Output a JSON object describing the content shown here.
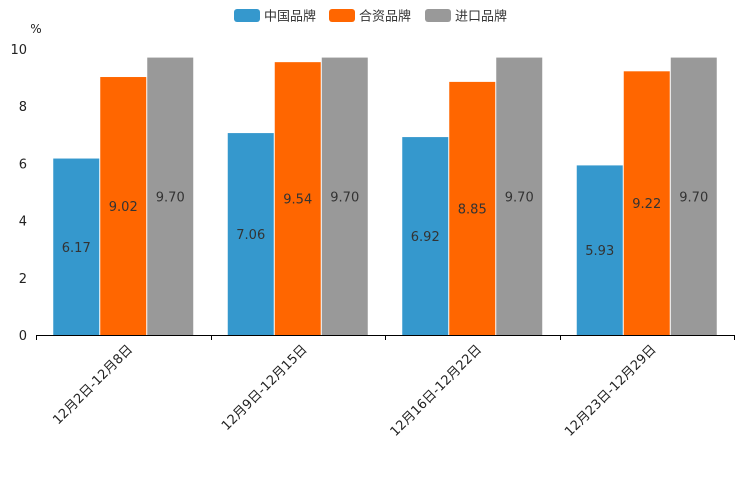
{
  "chart_data": {
    "type": "bar",
    "unit": "%",
    "ylim": [
      0,
      10
    ],
    "yticks": [
      0,
      2,
      4,
      6,
      8,
      10
    ],
    "categories": [
      "12月2日-12月8日",
      "12月9日-12月15日",
      "12月16日-12月22日",
      "12月23日-12月29日"
    ],
    "series": [
      {
        "name": "中国品牌",
        "color": "#3598cd",
        "values": [
          6.17,
          7.06,
          6.92,
          5.93
        ],
        "labels": [
          "6.17",
          "7.06",
          "6.92",
          "5.93"
        ]
      },
      {
        "name": "合资品牌",
        "color": "#ff6600",
        "values": [
          9.02,
          9.54,
          8.85,
          9.22
        ],
        "labels": [
          "9.02",
          "9.54",
          "8.85",
          "9.22"
        ]
      },
      {
        "name": "进口品牌",
        "color": "#999999",
        "values": [
          9.7,
          9.7,
          9.7,
          9.7
        ],
        "labels": [
          "9.70",
          "9.70",
          "9.70",
          "9.70"
        ]
      }
    ]
  }
}
